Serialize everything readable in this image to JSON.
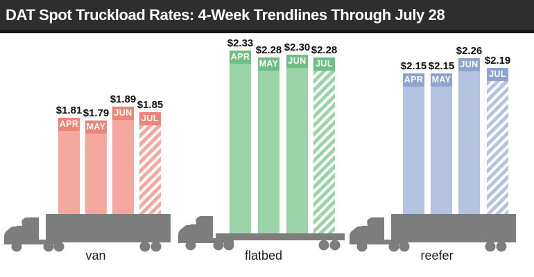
{
  "title": "DAT Spot Truckload Rates: 4-Week Trendlines Through July 28",
  "colors": {
    "title_bar_bg": "#2e2e2e",
    "title_text": "#ffffff",
    "truck_gray": "#7d7d7d",
    "background": "#ffffff",
    "value_label_text": "#0e0e0e"
  },
  "chart_data": {
    "type": "bar",
    "title": "DAT Spot Truckload Rates: 4-Week Trendlines Through July 28",
    "categories": [
      "APR",
      "MAY",
      "JUN",
      "JUL"
    ],
    "legend_position": "none",
    "grid": false,
    "groups": [
      {
        "label": "van",
        "header_color": "#ee8377",
        "body_color": "#f5a89d",
        "bars": [
          {
            "month": "APR",
            "value": 1.81,
            "display": "$1.81",
            "hatched": false
          },
          {
            "month": "MAY",
            "value": 1.79,
            "display": "$1.79",
            "hatched": false
          },
          {
            "month": "JUN",
            "value": 1.89,
            "display": "$1.89",
            "hatched": false
          },
          {
            "month": "JUL",
            "value": 1.85,
            "display": "$1.85",
            "hatched": true
          }
        ]
      },
      {
        "label": "flatbed",
        "header_color": "#6fbe83",
        "body_color": "#9cd4aa",
        "bars": [
          {
            "month": "APR",
            "value": 2.33,
            "display": "$2.33",
            "hatched": false
          },
          {
            "month": "MAY",
            "value": 2.28,
            "display": "$2.28",
            "hatched": false
          },
          {
            "month": "JUN",
            "value": 2.3,
            "display": "$2.30",
            "hatched": false
          },
          {
            "month": "JUL",
            "value": 2.28,
            "display": "$2.28",
            "hatched": true
          }
        ]
      },
      {
        "label": "reefer",
        "header_color": "#8da4cf",
        "body_color": "#b5c3e0",
        "bars": [
          {
            "month": "APR",
            "value": 2.15,
            "display": "$2.15",
            "hatched": false
          },
          {
            "month": "MAY",
            "value": 2.15,
            "display": "$2.15",
            "hatched": false
          },
          {
            "month": "JUN",
            "value": 2.26,
            "display": "$2.26",
            "hatched": false
          },
          {
            "month": "JUL",
            "value": 2.19,
            "display": "$2.19",
            "hatched": true
          }
        ]
      }
    ]
  }
}
